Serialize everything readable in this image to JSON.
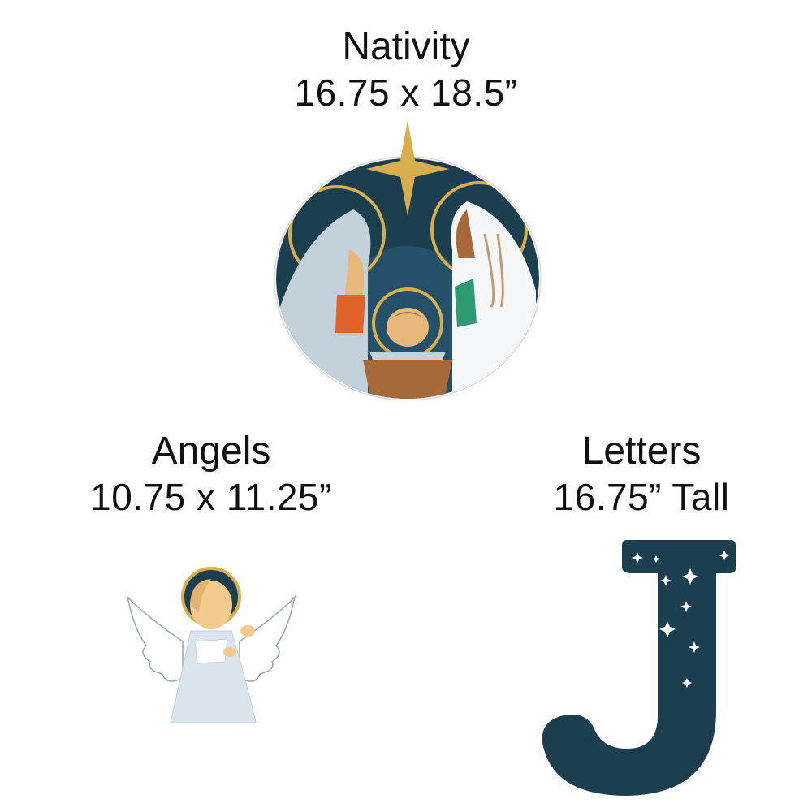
{
  "items": [
    {
      "name": "Nativity",
      "size": "16.75 x 18.5”"
    },
    {
      "name": "Angels",
      "size": "10.75 x 11.25”"
    },
    {
      "name": "Letters",
      "size": "16.75” Tall"
    }
  ],
  "colors": {
    "navy": "#1c3f50",
    "gold": "#d8ae4c",
    "skin": "#e8b77a",
    "robe_blue": "#c3d1da",
    "orange": "#e0622a",
    "green": "#2e9a73",
    "brown": "#a8693a"
  },
  "icons": [
    "star-icon",
    "halo-icon",
    "angel-icon",
    "letter-j-icon",
    "sparkle-icon"
  ]
}
